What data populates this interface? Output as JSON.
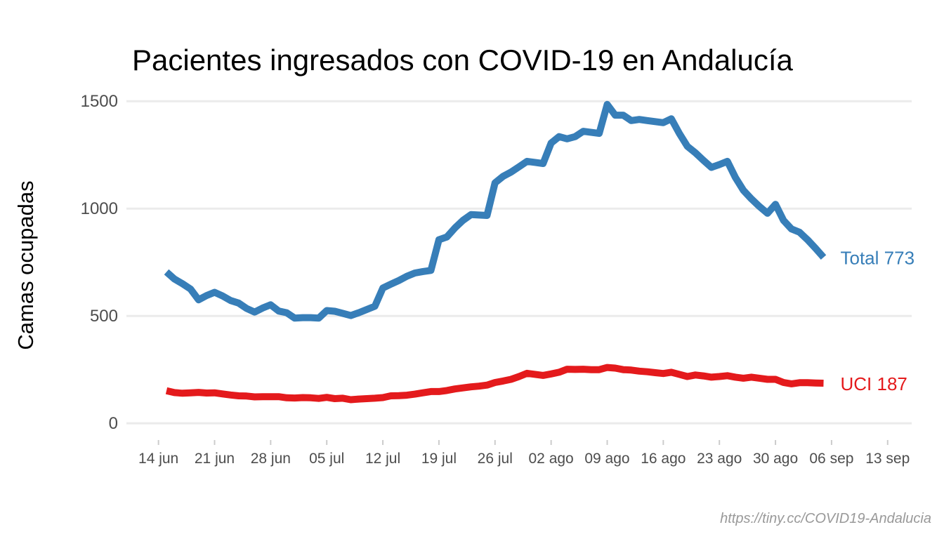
{
  "chart_data": {
    "type": "line",
    "title": "Pacientes ingresados con COVID-19 en Andalucía",
    "ylabel": "Camas ocupadas",
    "xlabel": "",
    "ylim": [
      -55,
      1540
    ],
    "yticks": [
      0,
      500,
      1000,
      1500
    ],
    "ytick_labels": [
      "0",
      "500",
      "1000",
      "1500"
    ],
    "xlim": [
      "2020-06-10",
      "2020-09-16"
    ],
    "x_ticks": [
      "2020-06-14",
      "2020-06-21",
      "2020-06-28",
      "2020-07-05",
      "2020-07-12",
      "2020-07-19",
      "2020-07-26",
      "2020-08-02",
      "2020-08-09",
      "2020-08-16",
      "2020-08-23",
      "2020-08-30",
      "2020-09-06",
      "2020-09-13"
    ],
    "xtick_labels": [
      "14 jun",
      "21 jun",
      "28 jun",
      "05 jul",
      "12 jul",
      "19 jul",
      "26 jul",
      "02 ago",
      "09 ago",
      "16 ago",
      "23 ago",
      "30 ago",
      "06 sep",
      "13 sep"
    ],
    "grid": true,
    "legend": "none",
    "caption": "https://tiny.cc/COVID19-Andalucia",
    "series": [
      {
        "name": "Total",
        "end_label": "Total 773",
        "color": "#377eb8",
        "points": [
          [
            "2020-06-15",
            705
          ],
          [
            "2020-06-16",
            672
          ],
          [
            "2020-06-17",
            650
          ],
          [
            "2020-06-18",
            625
          ],
          [
            "2020-06-19",
            575
          ],
          [
            "2020-06-20",
            595
          ],
          [
            "2020-06-21",
            610
          ],
          [
            "2020-06-22",
            593
          ],
          [
            "2020-06-23",
            572
          ],
          [
            "2020-06-24",
            560
          ],
          [
            "2020-06-25",
            535
          ],
          [
            "2020-06-26",
            518
          ],
          [
            "2020-06-27",
            537
          ],
          [
            "2020-06-28",
            552
          ],
          [
            "2020-06-29",
            523
          ],
          [
            "2020-06-30",
            515
          ],
          [
            "2020-07-01",
            490
          ],
          [
            "2020-07-02",
            492
          ],
          [
            "2020-07-03",
            492
          ],
          [
            "2020-07-04",
            490
          ],
          [
            "2020-07-05",
            525
          ],
          [
            "2020-07-06",
            522
          ],
          [
            "2020-07-07",
            512
          ],
          [
            "2020-07-08",
            502
          ],
          [
            "2020-07-09",
            515
          ],
          [
            "2020-07-10",
            530
          ],
          [
            "2020-07-11",
            545
          ],
          [
            "2020-07-12",
            630
          ],
          [
            "2020-07-13",
            648
          ],
          [
            "2020-07-14",
            665
          ],
          [
            "2020-07-15",
            685
          ],
          [
            "2020-07-16",
            700
          ],
          [
            "2020-07-17",
            707
          ],
          [
            "2020-07-18",
            712
          ],
          [
            "2020-07-19",
            855
          ],
          [
            "2020-07-20",
            868
          ],
          [
            "2020-07-21",
            910
          ],
          [
            "2020-07-22",
            945
          ],
          [
            "2020-07-23",
            972
          ],
          [
            "2020-07-24",
            970
          ],
          [
            "2020-07-25",
            968
          ],
          [
            "2020-07-26",
            1120
          ],
          [
            "2020-07-27",
            1150
          ],
          [
            "2020-07-28",
            1170
          ],
          [
            "2020-07-29",
            1195
          ],
          [
            "2020-07-30",
            1220
          ],
          [
            "2020-07-31",
            1215
          ],
          [
            "2020-08-01",
            1210
          ],
          [
            "2020-08-02",
            1305
          ],
          [
            "2020-08-03",
            1335
          ],
          [
            "2020-08-04",
            1325
          ],
          [
            "2020-08-05",
            1335
          ],
          [
            "2020-08-06",
            1360
          ],
          [
            "2020-08-07",
            1355
          ],
          [
            "2020-08-08",
            1350
          ],
          [
            "2020-08-09",
            1485
          ],
          [
            "2020-08-10",
            1435
          ],
          [
            "2020-08-11",
            1435
          ],
          [
            "2020-08-12",
            1410
          ],
          [
            "2020-08-13",
            1415
          ],
          [
            "2020-08-14",
            1410
          ],
          [
            "2020-08-15",
            1405
          ],
          [
            "2020-08-16",
            1400
          ],
          [
            "2020-08-17",
            1418
          ],
          [
            "2020-08-18",
            1350
          ],
          [
            "2020-08-19",
            1290
          ],
          [
            "2020-08-20",
            1260
          ],
          [
            "2020-08-21",
            1225
          ],
          [
            "2020-08-22",
            1192
          ],
          [
            "2020-08-23",
            1205
          ],
          [
            "2020-08-24",
            1220
          ],
          [
            "2020-08-25",
            1145
          ],
          [
            "2020-08-26",
            1085
          ],
          [
            "2020-08-27",
            1045
          ],
          [
            "2020-08-28",
            1010
          ],
          [
            "2020-08-29",
            978
          ],
          [
            "2020-08-30",
            1020
          ],
          [
            "2020-08-31",
            945
          ],
          [
            "2020-09-01",
            905
          ],
          [
            "2020-09-02",
            890
          ],
          [
            "2020-09-03",
            855
          ],
          [
            "2020-09-04",
            815
          ],
          [
            "2020-09-05",
            773
          ]
        ]
      },
      {
        "name": "UCI",
        "end_label": "UCI 187",
        "color": "#e41a1c",
        "points": [
          [
            "2020-06-15",
            152
          ],
          [
            "2020-06-16",
            143
          ],
          [
            "2020-06-17",
            140
          ],
          [
            "2020-06-18",
            142
          ],
          [
            "2020-06-19",
            144
          ],
          [
            "2020-06-20",
            141
          ],
          [
            "2020-06-21",
            142
          ],
          [
            "2020-06-22",
            137
          ],
          [
            "2020-06-23",
            132
          ],
          [
            "2020-06-24",
            128
          ],
          [
            "2020-06-25",
            127
          ],
          [
            "2020-06-26",
            123
          ],
          [
            "2020-06-27",
            124
          ],
          [
            "2020-06-28",
            124
          ],
          [
            "2020-06-29",
            124
          ],
          [
            "2020-06-30",
            119
          ],
          [
            "2020-07-01",
            118
          ],
          [
            "2020-07-02",
            120
          ],
          [
            "2020-07-03",
            119
          ],
          [
            "2020-07-04",
            116
          ],
          [
            "2020-07-05",
            121
          ],
          [
            "2020-07-06",
            115
          ],
          [
            "2020-07-07",
            117
          ],
          [
            "2020-07-08",
            110
          ],
          [
            "2020-07-09",
            113
          ],
          [
            "2020-07-10",
            115
          ],
          [
            "2020-07-11",
            117
          ],
          [
            "2020-07-12",
            120
          ],
          [
            "2020-07-13",
            128
          ],
          [
            "2020-07-14",
            129
          ],
          [
            "2020-07-15",
            131
          ],
          [
            "2020-07-16",
            136
          ],
          [
            "2020-07-17",
            142
          ],
          [
            "2020-07-18",
            148
          ],
          [
            "2020-07-19",
            148
          ],
          [
            "2020-07-20",
            153
          ],
          [
            "2020-07-21",
            160
          ],
          [
            "2020-07-22",
            165
          ],
          [
            "2020-07-23",
            170
          ],
          [
            "2020-07-24",
            173
          ],
          [
            "2020-07-25",
            178
          ],
          [
            "2020-07-26",
            190
          ],
          [
            "2020-07-27",
            197
          ],
          [
            "2020-07-28",
            205
          ],
          [
            "2020-07-29",
            218
          ],
          [
            "2020-07-30",
            233
          ],
          [
            "2020-07-31",
            228
          ],
          [
            "2020-08-01",
            223
          ],
          [
            "2020-08-02",
            230
          ],
          [
            "2020-08-03",
            238
          ],
          [
            "2020-08-04",
            252
          ],
          [
            "2020-08-05",
            251
          ],
          [
            "2020-08-06",
            252
          ],
          [
            "2020-08-07",
            250
          ],
          [
            "2020-08-08",
            250
          ],
          [
            "2020-08-09",
            260
          ],
          [
            "2020-08-10",
            257
          ],
          [
            "2020-08-11",
            250
          ],
          [
            "2020-08-12",
            248
          ],
          [
            "2020-08-13",
            243
          ],
          [
            "2020-08-14",
            240
          ],
          [
            "2020-08-15",
            236
          ],
          [
            "2020-08-16",
            232
          ],
          [
            "2020-08-17",
            238
          ],
          [
            "2020-08-18",
            228
          ],
          [
            "2020-08-19",
            218
          ],
          [
            "2020-08-20",
            225
          ],
          [
            "2020-08-21",
            221
          ],
          [
            "2020-08-22",
            215
          ],
          [
            "2020-08-23",
            218
          ],
          [
            "2020-08-24",
            222
          ],
          [
            "2020-08-25",
            215
          ],
          [
            "2020-08-26",
            210
          ],
          [
            "2020-08-27",
            215
          ],
          [
            "2020-08-28",
            210
          ],
          [
            "2020-08-29",
            205
          ],
          [
            "2020-08-30",
            205
          ],
          [
            "2020-08-31",
            190
          ],
          [
            "2020-09-01",
            184
          ],
          [
            "2020-09-02",
            189
          ],
          [
            "2020-09-03",
            189
          ],
          [
            "2020-09-04",
            188
          ],
          [
            "2020-09-05",
            187
          ]
        ]
      }
    ]
  }
}
